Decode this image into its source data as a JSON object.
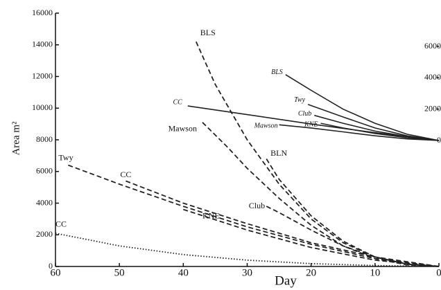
{
  "chart_data": {
    "type": "line",
    "x_label": "Day",
    "y_label": "Area m²",
    "xlim": [
      60,
      0
    ],
    "xticks": [
      60,
      50,
      40,
      30,
      20,
      10,
      0
    ],
    "ylim": [
      0,
      16000
    ],
    "yticks": [
      0,
      2000,
      4000,
      6000,
      8000,
      10000,
      12000,
      14000,
      16000
    ],
    "y2lim": [
      0,
      6000
    ],
    "y2ticks": [
      0,
      2000,
      4000,
      6000
    ],
    "series": [
      {
        "name": "BLS",
        "color": "#222",
        "style": "dashed",
        "x": [
          38,
          35,
          30,
          25,
          20,
          15,
          10,
          5,
          0
        ],
        "values": [
          14200,
          11500,
          8000,
          5200,
          3000,
          1500,
          600,
          150,
          0
        ]
      },
      {
        "name": "Mawson",
        "color": "#222",
        "style": "dashed",
        "x": [
          37,
          33,
          30,
          25,
          20,
          15,
          10,
          5,
          0
        ],
        "values": [
          9100,
          7500,
          6200,
          4300,
          2600,
          1300,
          500,
          100,
          0
        ]
      },
      {
        "name": "BLN",
        "color": "#222",
        "style": "dashed",
        "x": [
          27,
          25,
          20,
          15,
          10,
          5,
          0
        ],
        "values": [
          6800,
          5500,
          3200,
          1600,
          600,
          150,
          0
        ]
      },
      {
        "name": "Club",
        "color": "#222",
        "style": "dashed",
        "x": [
          27,
          25,
          20,
          15,
          10,
          5,
          0
        ],
        "values": [
          3800,
          3400,
          2300,
          1300,
          600,
          150,
          0
        ]
      },
      {
        "name": "KNE",
        "color": "#222",
        "style": "dashed",
        "x": [
          40,
          30,
          20,
          10,
          0
        ],
        "values": [
          3600,
          2300,
          1200,
          400,
          0
        ]
      },
      {
        "name": "Twy",
        "color": "#222",
        "style": "dashed",
        "x": [
          58,
          50,
          40,
          30,
          20,
          10,
          0
        ],
        "values": [
          6400,
          5200,
          3800,
          2500,
          1400,
          500,
          0
        ]
      },
      {
        "name": "CC",
        "color": "#222",
        "style": "dashed",
        "x": [
          49,
          40,
          30,
          20,
          10,
          0
        ],
        "values": [
          5400,
          4000,
          2700,
          1500,
          600,
          0
        ]
      },
      {
        "name": "CC",
        "color": "#222",
        "style": "dotted",
        "x": [
          60,
          50,
          40,
          30,
          20,
          10,
          0
        ],
        "values": [
          2100,
          1300,
          750,
          400,
          180,
          60,
          0
        ]
      },
      {
        "name": "BLS",
        "color": "#222",
        "style": "solid",
        "axis": "y2",
        "x": [
          24,
          20,
          15,
          10,
          5,
          0
        ],
        "values": [
          4200,
          3200,
          2000,
          1100,
          400,
          0
        ]
      },
      {
        "name": "Twy",
        "color": "#222",
        "style": "solid",
        "axis": "y2",
        "x": [
          20.5,
          15,
          10,
          5,
          0
        ],
        "values": [
          2300,
          1500,
          800,
          300,
          0
        ]
      },
      {
        "name": "Club",
        "color": "#222",
        "style": "solid",
        "axis": "y2",
        "x": [
          19.5,
          15,
          10,
          5,
          0
        ],
        "values": [
          1600,
          1100,
          600,
          250,
          0
        ]
      },
      {
        "name": "KNE",
        "color": "#222",
        "style": "solid",
        "axis": "y2",
        "x": [
          18.5,
          15,
          10,
          5,
          0
        ],
        "values": [
          1100,
          800,
          450,
          180,
          0
        ]
      },
      {
        "name": "Mawson",
        "color": "#222",
        "style": "solid",
        "axis": "y2",
        "x": [
          25,
          20,
          15,
          10,
          5,
          0
        ],
        "values": [
          1000,
          800,
          550,
          300,
          100,
          0
        ]
      },
      {
        "name": "CC",
        "color": "#222",
        "style": "solid",
        "axis": "y2",
        "x": [
          39.3,
          30,
          20,
          10,
          5,
          0
        ],
        "values": [
          2200,
          1650,
          1050,
          500,
          250,
          0
        ]
      }
    ]
  }
}
